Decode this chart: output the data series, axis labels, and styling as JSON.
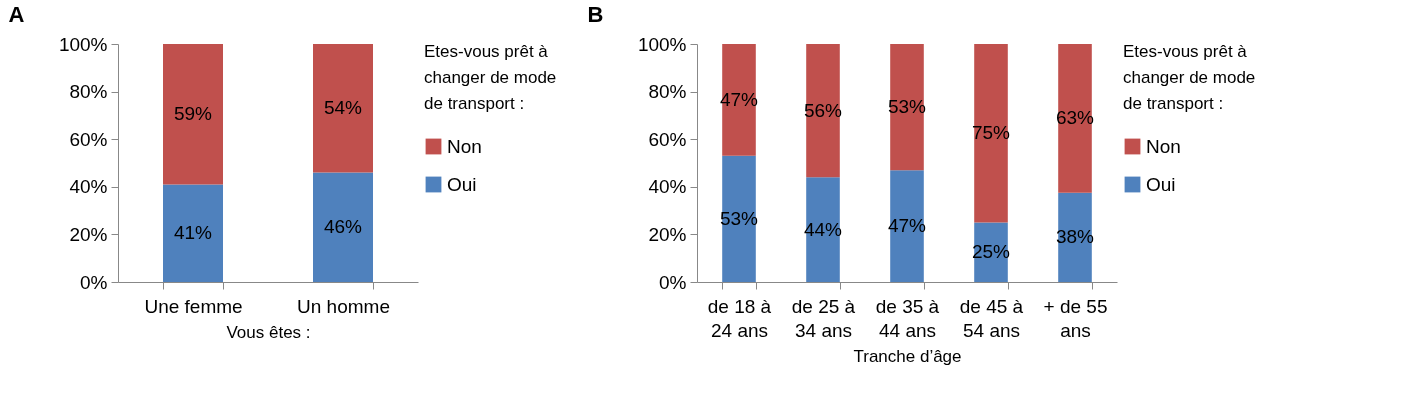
{
  "chart_data": [
    {
      "type": "bar",
      "title": "A",
      "xlabel": "Vous êtes :",
      "legend_title": "Etes-vous prêt à changer de mode de transport :",
      "legend": "right",
      "stacked": true,
      "categories": [
        "Une femme",
        "Un homme"
      ],
      "series": [
        {
          "name": "Oui",
          "color": "#4f81bd",
          "values": [
            41,
            46
          ],
          "value_labels": [
            "41%",
            "46%"
          ]
        },
        {
          "name": "Non",
          "color": "#c0504d",
          "values": [
            59,
            54
          ],
          "value_labels": [
            "59%",
            "54%"
          ]
        }
      ],
      "ylim": [
        0,
        100
      ],
      "yticks": [
        {
          "value": 0,
          "label": "0%"
        },
        {
          "value": 20,
          "label": "20%"
        },
        {
          "value": 40,
          "label": "40%"
        },
        {
          "value": 60,
          "label": "60%"
        },
        {
          "value": 80,
          "label": "80%"
        },
        {
          "value": 100,
          "label": "100%"
        }
      ]
    },
    {
      "type": "bar",
      "title": "B",
      "xlabel": "Tranche d’âge",
      "legend_title": "Etes-vous prêt à changer de mode de transport :",
      "legend": "right",
      "stacked": true,
      "categories": [
        "de 18 à 24 ans",
        "de 25 à 34 ans",
        "de 35 à 44 ans",
        "de 45 à 54 ans",
        "+ de 55 ans"
      ],
      "series": [
        {
          "name": "Oui",
          "color": "#4f81bd",
          "values": [
            53,
            44,
            47,
            25,
            37.5
          ],
          "value_labels": [
            "53%",
            "44%",
            "47%",
            "25%",
            "38%"
          ]
        },
        {
          "name": "Non",
          "color": "#c0504d",
          "values": [
            47,
            56,
            53,
            75,
            62.5
          ],
          "value_labels": [
            "47%",
            "56%",
            "53%",
            "75%",
            "63%"
          ]
        }
      ],
      "ylim": [
        0,
        100
      ],
      "yticks": [
        {
          "value": 0,
          "label": "0%"
        },
        {
          "value": 20,
          "label": "20%"
        },
        {
          "value": 40,
          "label": "40%"
        },
        {
          "value": 60,
          "label": "60%"
        },
        {
          "value": 80,
          "label": "80%"
        },
        {
          "value": 100,
          "label": "100%"
        }
      ]
    }
  ]
}
